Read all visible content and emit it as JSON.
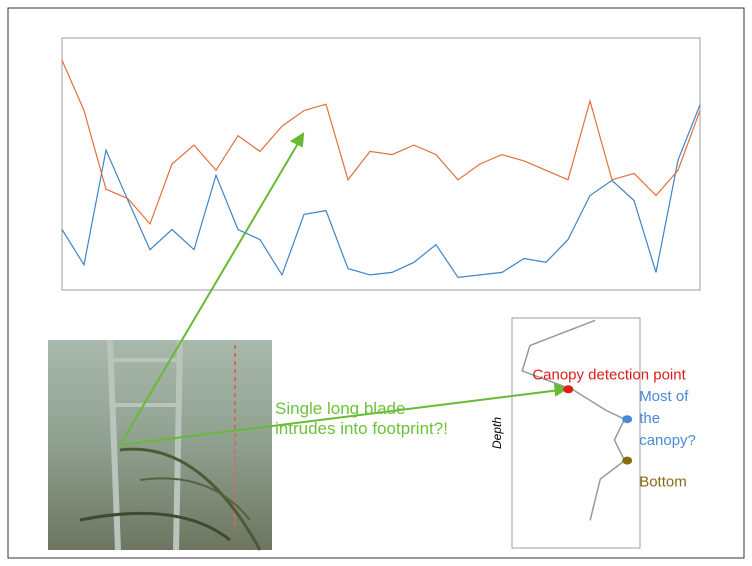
{
  "chart_data": [
    {
      "type": "line",
      "x": [
        0,
        1,
        2,
        3,
        4,
        5,
        6,
        7,
        8,
        9,
        10,
        11,
        12,
        13,
        14,
        15,
        16,
        17,
        18,
        19,
        20,
        21,
        22,
        23,
        24,
        25,
        26,
        27,
        28,
        29
      ],
      "xlim": [
        0,
        29
      ],
      "ylim": [
        0,
        0.2
      ],
      "y2lim": [
        0,
        0.8
      ],
      "series": [
        {
          "color": "#3f84c8",
          "values": [
            0.048,
            0.02,
            0.111,
            0.071,
            0.032,
            0.048,
            0.032,
            0.091,
            0.048,
            0.04,
            0.012,
            0.06,
            0.063,
            0.017,
            0.012,
            0.014,
            0.022,
            0.036,
            0.01,
            0.012,
            0.014,
            0.025,
            0.022,
            0.04,
            0.075,
            0.087,
            0.071,
            0.014,
            0.103,
            0.147
          ]
        },
        {
          "color": "#e2703d",
          "axis": "y2",
          "values": [
            0.73,
            0.57,
            0.32,
            0.29,
            0.21,
            0.4,
            0.46,
            0.38,
            0.49,
            0.44,
            0.52,
            0.57,
            0.59,
            0.35,
            0.44,
            0.43,
            0.46,
            0.43,
            0.35,
            0.4,
            0.43,
            0.41,
            0.38,
            0.35,
            0.6,
            0.35,
            0.37,
            0.3,
            0.38,
            0.57
          ]
        }
      ]
    },
    {
      "type": "line",
      "ylabel": "Depth",
      "xlim": [
        0,
        100
      ],
      "ylim": [
        100,
        0
      ],
      "x": [
        65,
        14,
        8,
        37,
        47,
        73,
        88,
        80,
        88,
        69,
        61
      ],
      "series": [
        {
          "color": "#999999",
          "values": [
            1,
            12,
            23,
            29,
            31,
            40,
            44,
            53,
            62,
            70,
            88
          ]
        }
      ],
      "markers": [
        {
          "name": "Canopy detection point",
          "color": "#e01b1b",
          "x": 44,
          "y": 31
        },
        {
          "name": "Most of the canopy?",
          "color": "#4a8ad4",
          "x": 90,
          "y": 44
        },
        {
          "name": "Bottom",
          "color": "#8a6a10",
          "x": 90,
          "y": 62
        }
      ]
    }
  ],
  "annotation": "Single long blade intrudes into footprint?!"
}
